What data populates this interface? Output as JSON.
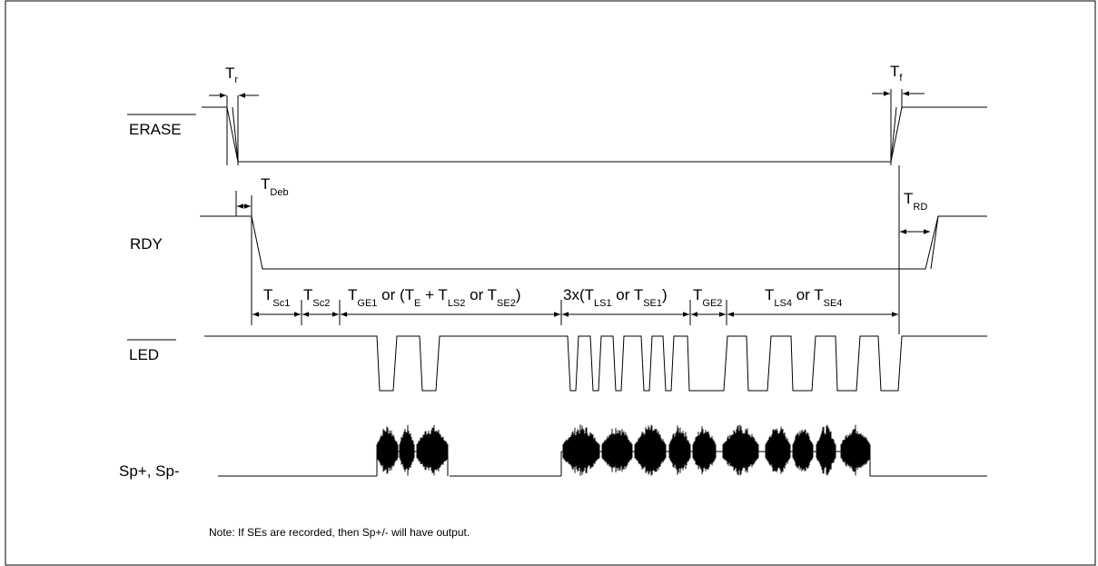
{
  "signals": {
    "erase": "ERASE",
    "rdy": "RDY",
    "led": "LED",
    "sp": "Sp+, Sp-"
  },
  "timing": {
    "tr": {
      "main": "T",
      "sub": "r"
    },
    "tf": {
      "main": "T",
      "sub": "f"
    },
    "tdeb": {
      "main": "T",
      "sub": "Deb"
    },
    "trd": {
      "main": "T",
      "sub": "RD"
    },
    "tsc1": {
      "main": "T",
      "sub": "Sc1"
    },
    "tsc2": {
      "main": "T",
      "sub": "Sc2"
    },
    "tge1": {
      "t1": "T",
      "s1": "GE1",
      "t2": " or (T",
      "s2": "E",
      "t3": " + T",
      "s3": "LS2",
      "t4": " or T",
      "s4": "SE2",
      "t5": ")"
    },
    "tls1": {
      "t1": "3x(T",
      "s1": "LS1",
      "t2": " or T",
      "s2": "SE1",
      "t3": ")"
    },
    "tge2": {
      "main": "T",
      "sub": "GE2"
    },
    "tls4": {
      "t1": "T",
      "s1": "LS4",
      "t2": " or T",
      "s2": "SE4"
    }
  },
  "note": "Note:  If SEs are recorded, then Sp+/- will have output."
}
